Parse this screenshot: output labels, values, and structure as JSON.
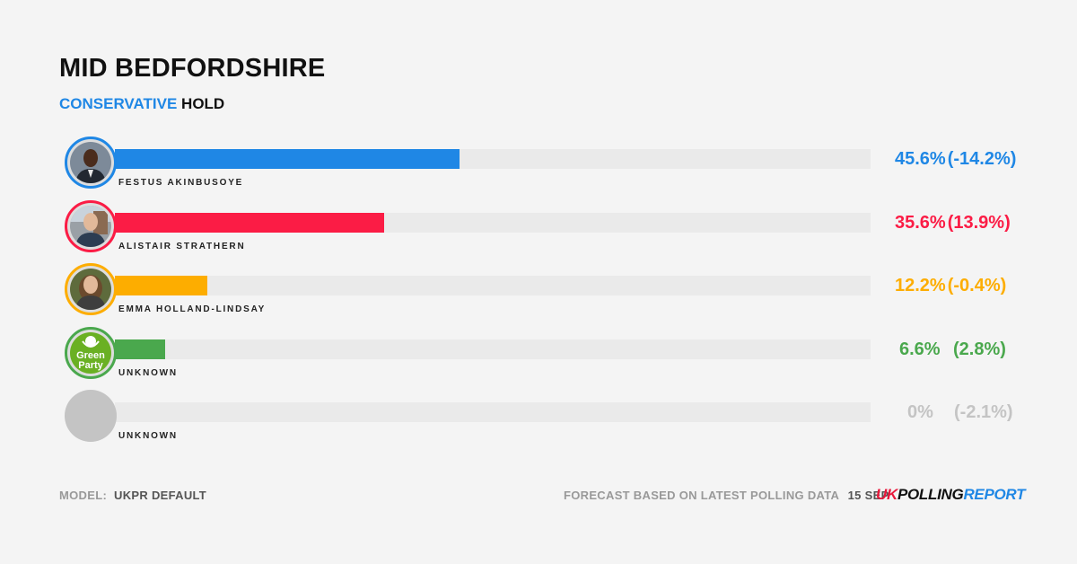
{
  "header": {
    "title": "MID BEDFORDSHIRE",
    "result_party": "CONSERVATIVE",
    "result_word": "HOLD"
  },
  "colors": {
    "conservative": "#1f87e5",
    "labour": "#fb1c45",
    "libdem": "#fdad00",
    "green": "#4aa84d",
    "other": "#c4c4c4"
  },
  "chart_data": {
    "type": "bar",
    "orientation": "horizontal",
    "title": "MID BEDFORDSHIRE",
    "subtitle": "CONSERVATIVE HOLD",
    "xlim": [
      0,
      100
    ],
    "grid": false,
    "categories": [
      "FESTUS AKINBUSOYE",
      "ALISTAIR STRATHERN",
      "EMMA HOLLAND-LINDSAY",
      "UNKNOWN",
      "UNKNOWN"
    ],
    "values": [
      45.6,
      35.6,
      12.2,
      6.6,
      0
    ],
    "rows": [
      {
        "name": "FESTUS AKINBUSOYE",
        "value": 45.6,
        "pct_label": "45.6%",
        "change_label": "(-14.2%)",
        "color": "#1f87e5",
        "avatar_icon": "candidate-photo-icon"
      },
      {
        "name": "ALISTAIR STRATHERN",
        "value": 35.6,
        "pct_label": "35.6%",
        "change_label": "(13.9%)",
        "color": "#fb1c45",
        "avatar_icon": "candidate-photo-icon"
      },
      {
        "name": "EMMA HOLLAND-LINDSAY",
        "value": 12.2,
        "pct_label": "12.2%",
        "change_label": "(-0.4%)",
        "color": "#fdad00",
        "avatar_icon": "candidate-photo-icon"
      },
      {
        "name": "UNKNOWN",
        "value": 6.6,
        "pct_label": "6.6%",
        "change_label": "(2.8%)",
        "color": "#4aa84d",
        "avatar_icon": "green-party-logo-icon",
        "logo_text": [
          "Green",
          "Party"
        ]
      },
      {
        "name": "UNKNOWN",
        "value": 0,
        "pct_label": "0%",
        "change_label": "(-2.1%)",
        "color": "#c4c4c4",
        "avatar_icon": "blank-avatar-icon"
      }
    ]
  },
  "footer": {
    "model_label": "MODEL:",
    "model_value": "UKPR DEFAULT",
    "forecast_text": "FORECAST BASED ON LATEST POLLING DATA",
    "date": "15 SEP",
    "logo_uk": "UK",
    "logo_polling": "POLLING",
    "logo_report": "REPORT"
  }
}
